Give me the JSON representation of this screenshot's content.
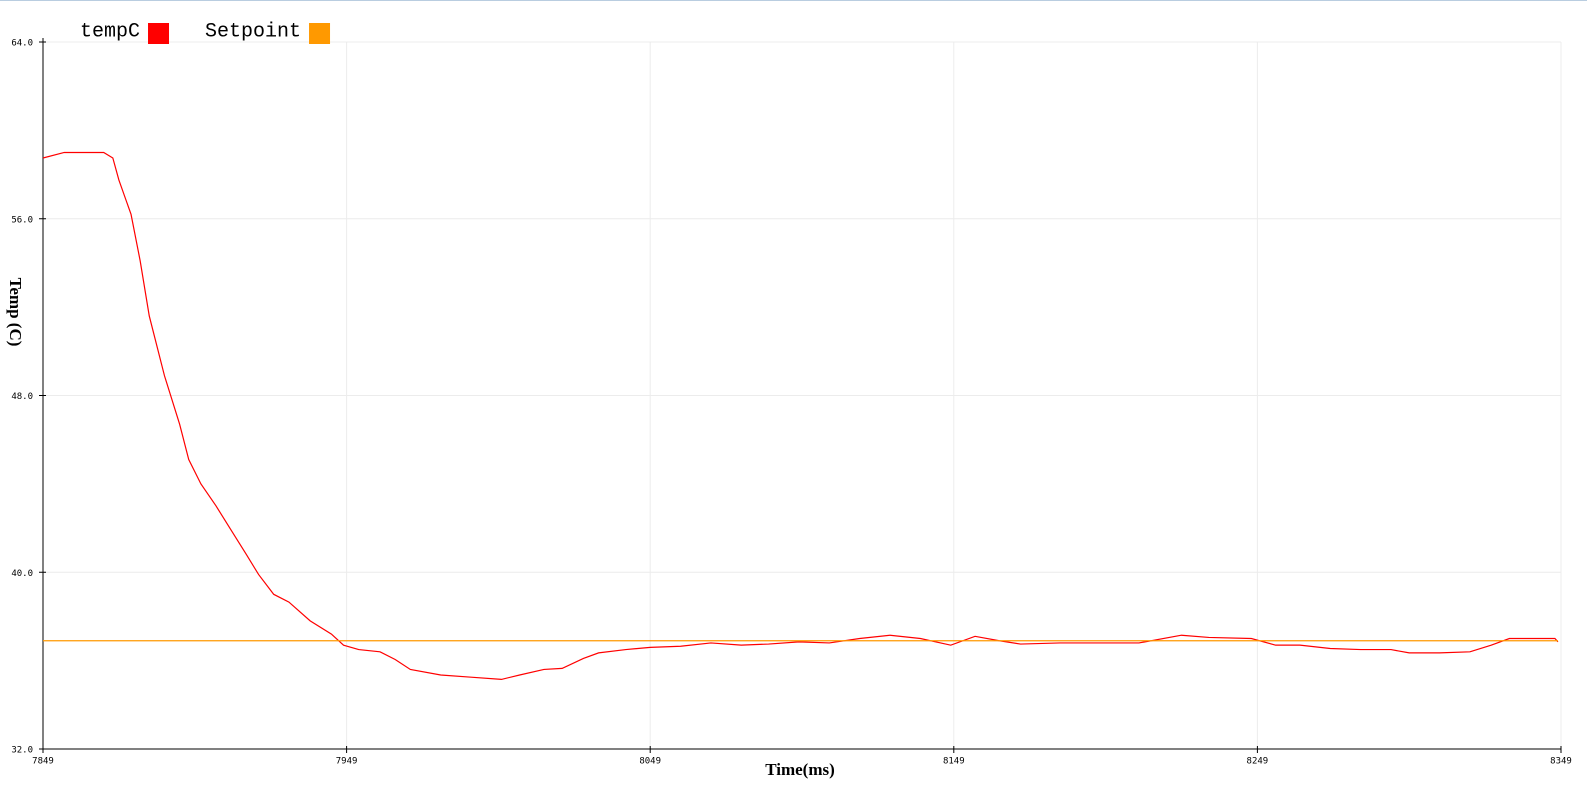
{
  "chart_data": {
    "type": "line",
    "x_label": "Time(ms)",
    "y_label": "Temp (C)",
    "x": [
      7849,
      7856,
      7869,
      7872,
      7874,
      7878,
      7881,
      7884,
      7889,
      7894,
      7897,
      7901,
      7906,
      7911,
      7916,
      7920,
      7925,
      7930,
      7937,
      7944,
      7948,
      7953,
      7960,
      7965,
      7970,
      7980,
      7990,
      8000,
      8006,
      8014,
      8020,
      8027,
      8032,
      8041,
      8049,
      8059,
      8069,
      8079,
      8088,
      8098,
      8108,
      8118,
      8128,
      8138,
      8148,
      8156,
      8164,
      8171,
      8184,
      8197,
      8210,
      8224,
      8233,
      8247,
      8255,
      8263,
      8273,
      8283,
      8293,
      8299,
      8309,
      8319,
      8326,
      8332,
      8347,
      8348
    ],
    "series": [
      {
        "name": "tempC",
        "color": "#ff0000",
        "values": [
          58.75,
          59.0,
          59.0,
          58.75,
          57.75,
          56.2,
          54.1,
          51.6,
          48.9,
          46.7,
          45.1,
          44.0,
          43.0,
          41.9,
          40.8,
          39.9,
          39.0,
          38.65,
          37.8,
          37.2,
          36.7,
          36.5,
          36.4,
          36.05,
          35.6,
          35.35,
          35.25,
          35.15,
          35.35,
          35.6,
          35.65,
          36.1,
          36.35,
          36.5,
          36.6,
          36.65,
          36.8,
          36.7,
          36.75,
          36.85,
          36.8,
          37.0,
          37.15,
          37.0,
          36.7,
          37.1,
          36.9,
          36.75,
          36.8,
          36.8,
          36.8,
          37.15,
          37.05,
          37.0,
          36.7,
          36.7,
          36.55,
          36.5,
          36.5,
          36.35,
          36.35,
          36.4,
          36.7,
          37.0,
          37.0,
          36.85
        ]
      },
      {
        "name": "Setpoint",
        "color": "#ff9900",
        "values": [
          36.9,
          36.9,
          36.9,
          36.9,
          36.9,
          36.9,
          36.9,
          36.9,
          36.9,
          36.9,
          36.9,
          36.9,
          36.9,
          36.9,
          36.9,
          36.9,
          36.9,
          36.9,
          36.9,
          36.9,
          36.9,
          36.9,
          36.9,
          36.9,
          36.9,
          36.9,
          36.9,
          36.9,
          36.9,
          36.9,
          36.9,
          36.9,
          36.9,
          36.9,
          36.9,
          36.9,
          36.9,
          36.9,
          36.9,
          36.9,
          36.9,
          36.9,
          36.9,
          36.9,
          36.9,
          36.9,
          36.9,
          36.9,
          36.9,
          36.9,
          36.9,
          36.9,
          36.9,
          36.9,
          36.9,
          36.9,
          36.9,
          36.9,
          36.9,
          36.9,
          36.9,
          36.9,
          36.9,
          36.9,
          36.9,
          36.9
        ]
      }
    ],
    "xlim": [
      7849,
      8349
    ],
    "xticks": [
      7849,
      7949,
      8049,
      8149,
      8249,
      8349
    ],
    "ylim": [
      32,
      64
    ],
    "yticks": [
      {
        "value": 32,
        "label": "32.0"
      },
      {
        "value": 40,
        "label": "40.0"
      },
      {
        "value": 48,
        "label": "48.0"
      },
      {
        "value": 56,
        "label": "56.0"
      },
      {
        "value": 64,
        "label": "64.0"
      }
    ],
    "grid": true
  }
}
